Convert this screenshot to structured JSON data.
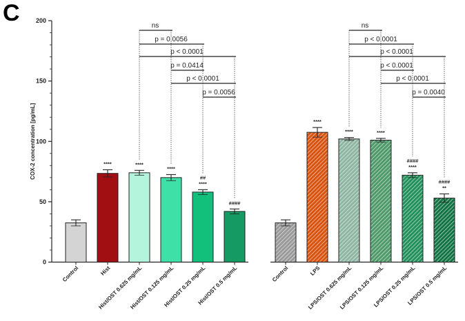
{
  "panel_label": "C",
  "chart_data": {
    "type": "bar",
    "ylabel": "COX-2 concentration  [pg/mL]",
    "xlabel": "",
    "ylim": [
      0,
      200
    ],
    "yticks": [
      "0",
      "50",
      "100",
      "150",
      "200"
    ],
    "groups": [
      {
        "bars": [
          {
            "category": "Control",
            "value": 32.5,
            "error": 2.5,
            "color": "#d4d4d4",
            "hatched": false,
            "sig_top": "",
            "sig_bottom": ""
          },
          {
            "category": "Hist",
            "value": 73.5,
            "error": 3.0,
            "color": "#a10f12",
            "hatched": false,
            "sig_top": "",
            "sig_bottom": "****"
          },
          {
            "category": "Hist/OST 0.625 mg/mL",
            "value": 74.0,
            "error": 2.0,
            "color": "#b4f3dc",
            "hatched": false,
            "sig_top": "",
            "sig_bottom": "****"
          },
          {
            "category": "Hist/OST 0.125 mg/mL",
            "value": 70.0,
            "error": 2.5,
            "color": "#3ee0a8",
            "hatched": false,
            "sig_top": "",
            "sig_bottom": "****"
          },
          {
            "category": "Hist/OST 0.25 mg/mL",
            "value": 58.0,
            "error": 2.0,
            "color": "#12c07b",
            "hatched": false,
            "sig_top": "##",
            "sig_bottom": "****"
          },
          {
            "category": "Hist/OST 0.5 mg/mL",
            "value": 42.0,
            "error": 2.0,
            "color": "#169a63",
            "hatched": false,
            "sig_top": "",
            "sig_bottom": "####"
          }
        ],
        "comparisons": [
          {
            "from": 2,
            "to": 3,
            "label": "ns"
          },
          {
            "from": 2,
            "to": 4,
            "label": "p = 0.0056"
          },
          {
            "from": 2,
            "to": 5,
            "label": "p < 0.0001"
          },
          {
            "from": 3,
            "to": 4,
            "label": "p = 0.0414"
          },
          {
            "from": 3,
            "to": 5,
            "label": "p < 0.0001"
          },
          {
            "from": 4,
            "to": 5,
            "label": "p = 0.0056"
          }
        ]
      },
      {
        "bars": [
          {
            "category": "Control",
            "value": 32.5,
            "error": 2.5,
            "color": "#9a9a9a",
            "hatched": true,
            "sig_top": "",
            "sig_bottom": ""
          },
          {
            "category": "LPS",
            "value": 107.5,
            "error": 4.0,
            "color": "#d9530f",
            "hatched": true,
            "sig_top": "",
            "sig_bottom": "****"
          },
          {
            "category": "LPS/OST 0.625 mg/mL",
            "value": 102.0,
            "error": 1.2,
            "color": "#8fb5a3",
            "hatched": true,
            "sig_top": "",
            "sig_bottom": "****"
          },
          {
            "category": "LPS/OST 0.125 mg/mL",
            "value": 101.0,
            "error": 1.5,
            "color": "#4f9a6a",
            "hatched": true,
            "sig_top": "",
            "sig_bottom": "****"
          },
          {
            "category": "LPS/OST 0.25 mg/mL",
            "value": 72.0,
            "error": 2.0,
            "color": "#22915c",
            "hatched": true,
            "sig_top": "####",
            "sig_bottom": "****"
          },
          {
            "category": "LPS/OST 0.5 mg/mL",
            "value": 53.0,
            "error": 3.5,
            "color": "#137545",
            "hatched": true,
            "sig_top": "####",
            "sig_bottom": "**"
          }
        ],
        "comparisons": [
          {
            "from": 2,
            "to": 3,
            "label": "ns"
          },
          {
            "from": 2,
            "to": 4,
            "label": "p < 0.0001"
          },
          {
            "from": 2,
            "to": 5,
            "label": "p < 0.0001"
          },
          {
            "from": 3,
            "to": 4,
            "label": "p < 0.0001"
          },
          {
            "from": 3,
            "to": 5,
            "label": "p < 0.0001"
          },
          {
            "from": 4,
            "to": 5,
            "label": "p = 0.0040"
          }
        ]
      }
    ]
  }
}
